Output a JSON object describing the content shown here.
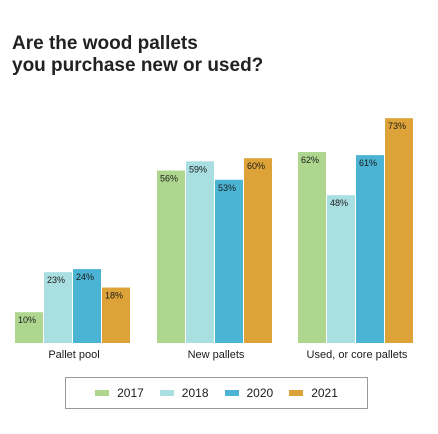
{
  "chart_data": {
    "type": "bar",
    "title": "Are the wood pallets you purchase new or used?",
    "title_lines": [
      "Are the wood pallets",
      "you purchase new or used?"
    ],
    "categories": [
      "Pallet pool",
      "New pallets",
      "Used, or core pallets"
    ],
    "series": [
      {
        "name": "2017",
        "color": "#aed68e",
        "values": [
          10,
          56,
          62
        ]
      },
      {
        "name": "2018",
        "color": "#aadfe2",
        "values": [
          23,
          59,
          48
        ]
      },
      {
        "name": "2020",
        "color": "#4bb3d3",
        "values": [
          24,
          53,
          61
        ]
      },
      {
        "name": "2021",
        "color": "#dea338",
        "values": [
          18,
          60,
          73
        ]
      }
    ],
    "value_suffix": "%",
    "ylim": [
      0,
      75
    ],
    "grid": false,
    "legend_position": "bottom"
  }
}
